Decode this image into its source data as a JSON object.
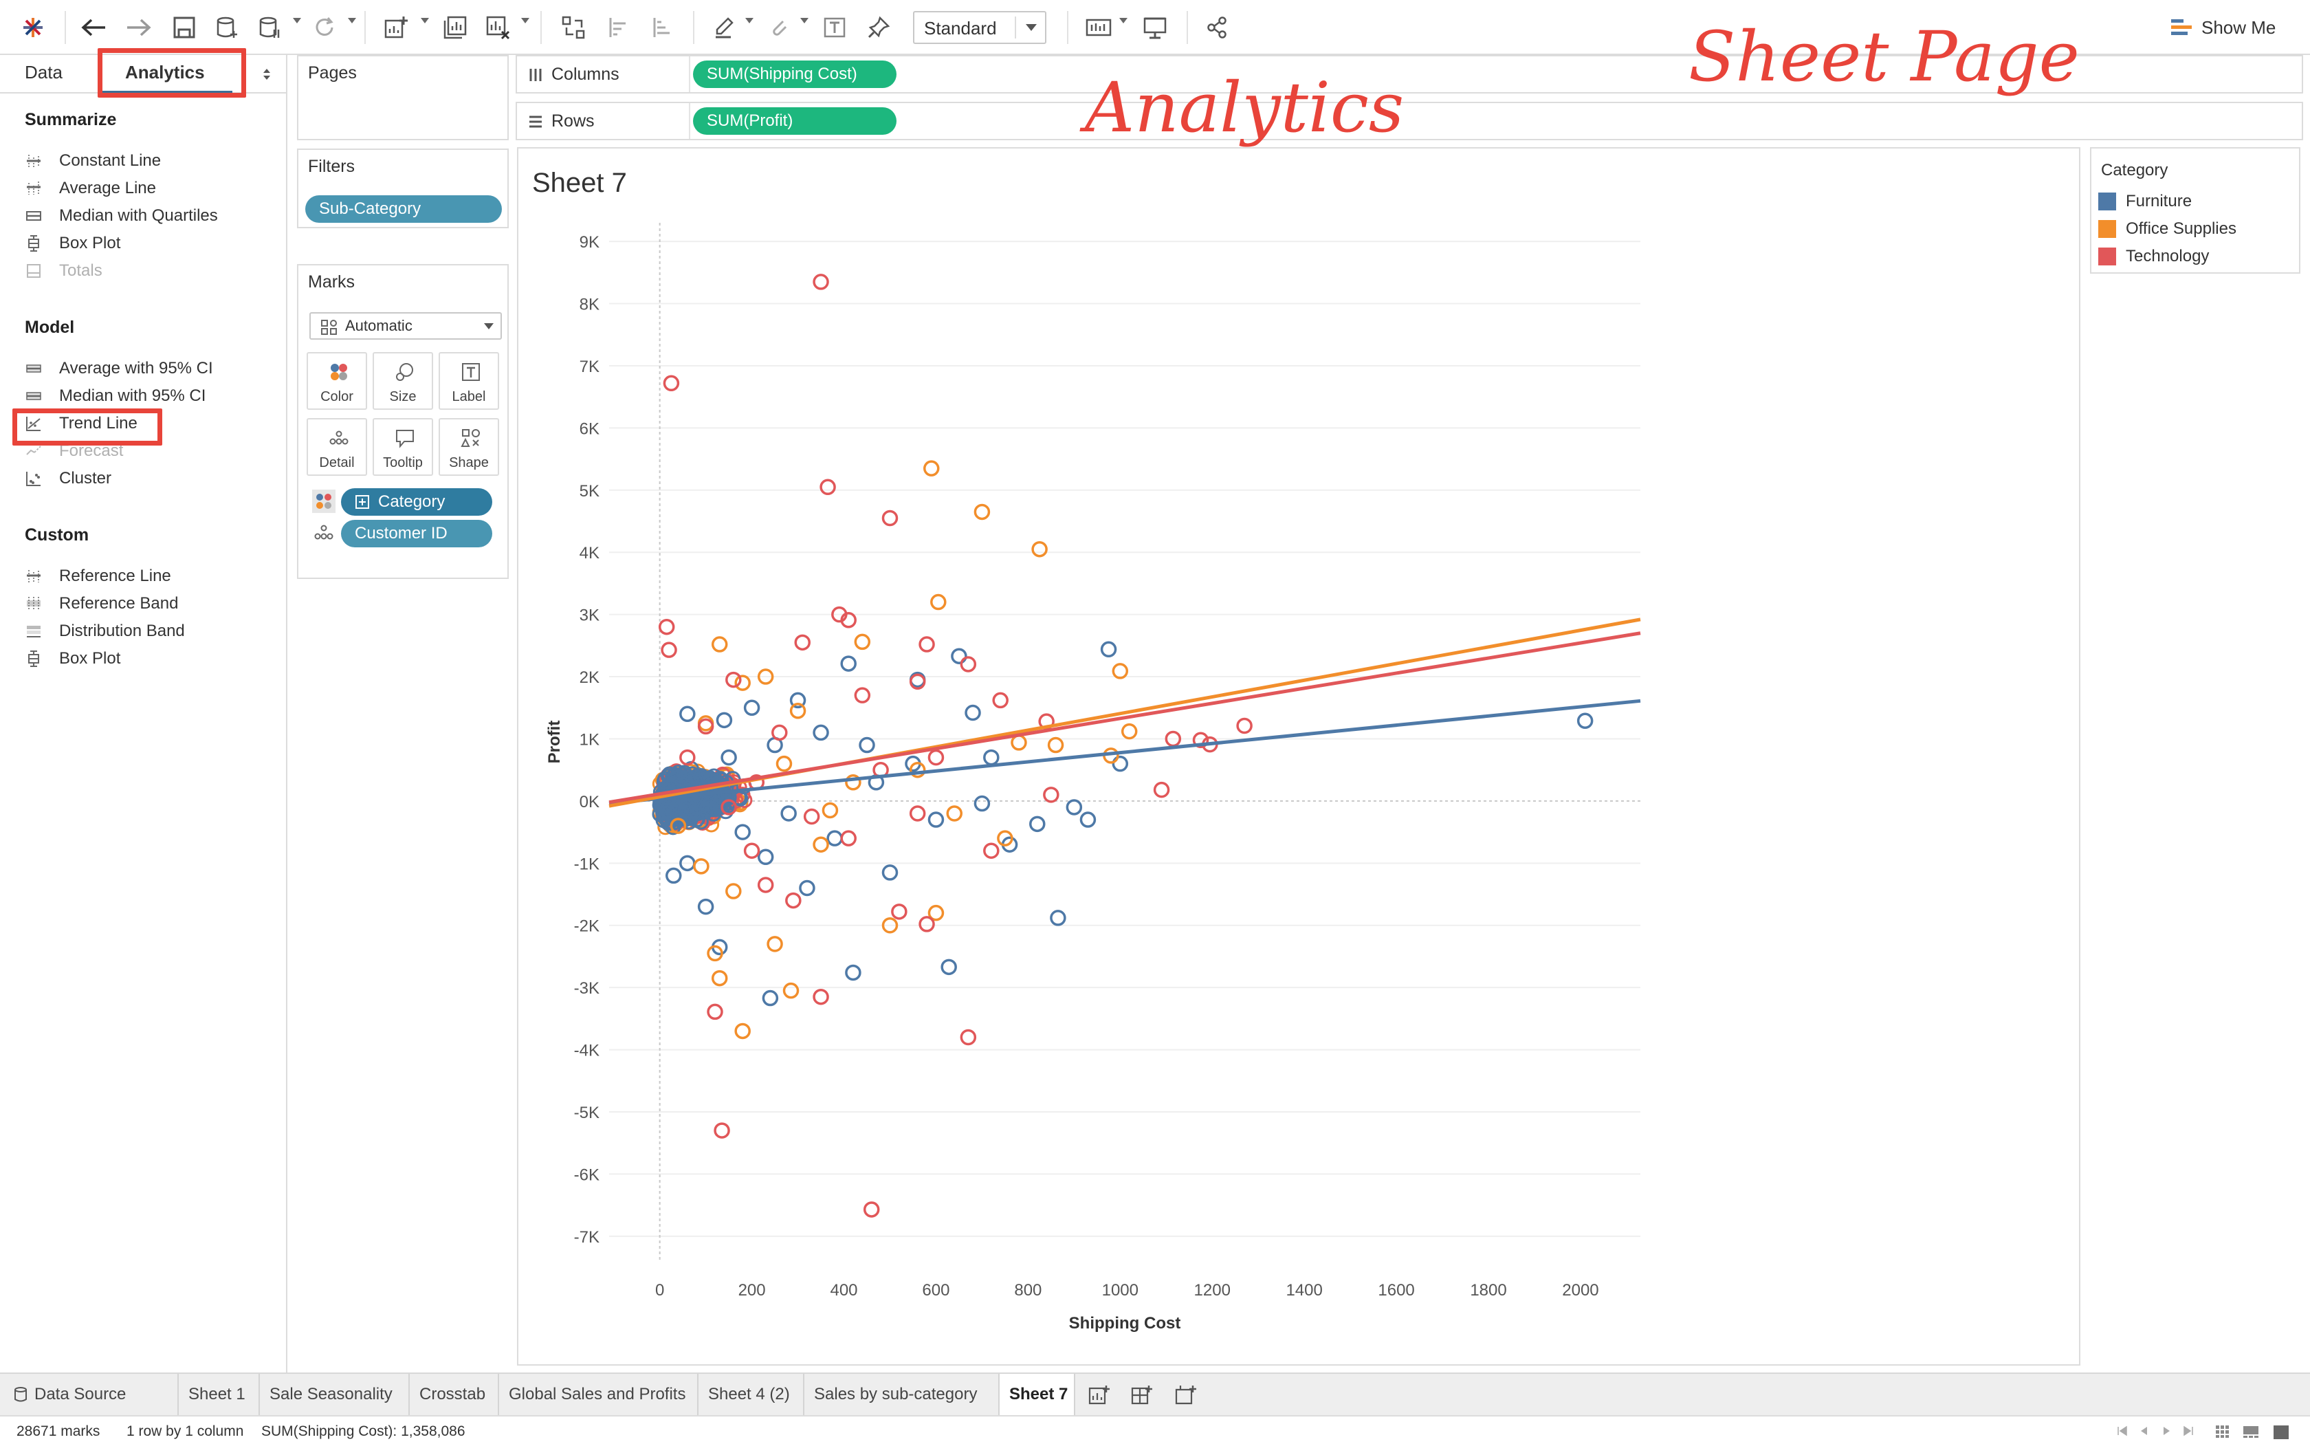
{
  "toolbar": {
    "fit_value": "Standard",
    "show_me_label": "Show Me",
    "icons": [
      "tableau-logo-icon",
      "undo-icon",
      "redo-icon",
      "save-icon",
      "new-datasource-icon",
      "pause-updates-icon",
      "refresh-icon",
      "new-worksheet-icon",
      "duplicate-sheet-icon",
      "clear-sheet-icon",
      "swap-axes-icon",
      "sort-ascending-icon",
      "sort-descending-icon",
      "highlight-icon",
      "group-icon",
      "label-icon",
      "pin-icon",
      "show-cards-icon",
      "presentation-icon",
      "share-icon"
    ]
  },
  "left_panel": {
    "tabs": {
      "data": "Data",
      "analytics": "Analytics"
    },
    "summarize": {
      "title": "Summarize",
      "items": [
        {
          "label": "Constant Line",
          "icon": "constant-line-icon",
          "enabled": true
        },
        {
          "label": "Average Line",
          "icon": "average-line-icon",
          "enabled": true
        },
        {
          "label": "Median with Quartiles",
          "icon": "median-quartiles-icon",
          "enabled": true
        },
        {
          "label": "Box Plot",
          "icon": "box-plot-icon",
          "enabled": true
        },
        {
          "label": "Totals",
          "icon": "totals-icon",
          "enabled": false
        }
      ]
    },
    "model": {
      "title": "Model",
      "items": [
        {
          "label": "Average with 95% CI",
          "icon": "average-ci-icon",
          "enabled": true
        },
        {
          "label": "Median with 95% CI",
          "icon": "median-ci-icon",
          "enabled": true
        },
        {
          "label": "Trend Line",
          "icon": "trend-line-icon",
          "enabled": true
        },
        {
          "label": "Forecast",
          "icon": "forecast-icon",
          "enabled": false
        },
        {
          "label": "Cluster",
          "icon": "cluster-icon",
          "enabled": true
        }
      ]
    },
    "custom": {
      "title": "Custom",
      "items": [
        {
          "label": "Reference Line",
          "icon": "reference-line-icon",
          "enabled": true
        },
        {
          "label": "Reference Band",
          "icon": "reference-band-icon",
          "enabled": true
        },
        {
          "label": "Distribution Band",
          "icon": "distribution-band-icon",
          "enabled": true
        },
        {
          "label": "Box Plot",
          "icon": "box-plot-icon",
          "enabled": true
        }
      ]
    }
  },
  "cards": {
    "pages_title": "Pages",
    "filters_title": "Filters",
    "filter_pill": "Sub-Category",
    "marks_title": "Marks",
    "mark_type": "Automatic",
    "mark_buttons": [
      "Color",
      "Size",
      "Label",
      "Detail",
      "Tooltip",
      "Shape"
    ],
    "mark_pills": [
      {
        "label": "Category",
        "kind": "color"
      },
      {
        "label": "Customer ID",
        "kind": "detail"
      }
    ]
  },
  "shelves": {
    "columns_label": "Columns",
    "columns_pill": "SUM(Shipping Cost)",
    "rows_label": "Rows",
    "rows_pill": "SUM(Profit)"
  },
  "sheet": {
    "title": "Sheet 7"
  },
  "legend": {
    "title": "Category",
    "items": [
      {
        "label": "Furniture",
        "color": "#4e79a7"
      },
      {
        "label": "Office Supplies",
        "color": "#f28e2b"
      },
      {
        "label": "Technology",
        "color": "#e15759"
      }
    ]
  },
  "annotations": {
    "sheet_page": "Sheet Page",
    "analytics": "Analytics"
  },
  "sheet_tabs": {
    "data_source": "Data Source",
    "tabs": [
      "Sheet 1",
      "Sale Seasonality",
      "Crosstab",
      "Global Sales and Profits",
      "Sheet 4 (2)",
      "Sales by sub-category",
      "Sheet 7"
    ],
    "active": "Sheet 7"
  },
  "status": {
    "marks": "28671 marks",
    "dims": "1 row by 1 column",
    "sum": "SUM(Shipping Cost): 1,358,086"
  },
  "chart_data": {
    "type": "scatter",
    "title": "Sheet 7",
    "xlabel": "Shipping Cost",
    "ylabel": "Profit",
    "xlim": [
      -110,
      2130
    ],
    "ylim": [
      -7400,
      9300
    ],
    "x_ticks": [
      {
        "v": 0,
        "label": "0"
      },
      {
        "v": 200,
        "label": "200"
      },
      {
        "v": 400,
        "label": "400"
      },
      {
        "v": 600,
        "label": "600"
      },
      {
        "v": 800,
        "label": "800"
      },
      {
        "v": 1000,
        "label": "1000"
      },
      {
        "v": 1200,
        "label": "1200"
      },
      {
        "v": 1400,
        "label": "1400"
      },
      {
        "v": 1600,
        "label": "1600"
      },
      {
        "v": 1800,
        "label": "1800"
      },
      {
        "v": 2000,
        "label": "2000"
      }
    ],
    "y_ticks": [
      {
        "v": 9000,
        "label": "9K"
      },
      {
        "v": 8000,
        "label": "8K"
      },
      {
        "v": 7000,
        "label": "7K"
      },
      {
        "v": 6000,
        "label": "6K"
      },
      {
        "v": 5000,
        "label": "5K"
      },
      {
        "v": 4000,
        "label": "4K"
      },
      {
        "v": 3000,
        "label": "3K"
      },
      {
        "v": 2000,
        "label": "2K"
      },
      {
        "v": 1000,
        "label": "1K"
      },
      {
        "v": 0,
        "label": "0K"
      },
      {
        "v": -1000,
        "label": "-1K"
      },
      {
        "v": -2000,
        "label": "-2K"
      },
      {
        "v": -3000,
        "label": "-3K"
      },
      {
        "v": -4000,
        "label": "-4K"
      },
      {
        "v": -5000,
        "label": "-5K"
      },
      {
        "v": -6000,
        "label": "-6K"
      },
      {
        "v": -7000,
        "label": "-7K"
      }
    ],
    "grid": true,
    "legend_position": "right",
    "series": [
      {
        "name": "Furniture",
        "color": "#4e79a7",
        "trend": [
          [
            -110,
            -40
          ],
          [
            2130,
            1610
          ]
        ],
        "points": [
          [
            2010,
            1290
          ],
          [
            975,
            2440
          ],
          [
            865,
            -1880
          ],
          [
            628,
            -2670
          ],
          [
            420,
            -2760
          ],
          [
            240,
            -3170
          ],
          [
            130,
            -2350
          ],
          [
            930,
            -300
          ],
          [
            900,
            -100
          ],
          [
            820,
            -370
          ],
          [
            1000,
            600
          ],
          [
            720,
            700
          ],
          [
            650,
            2330
          ],
          [
            680,
            1420
          ],
          [
            560,
            1950
          ],
          [
            410,
            2210
          ],
          [
            300,
            1620
          ],
          [
            200,
            1500
          ],
          [
            140,
            1300
          ],
          [
            60,
            -1000
          ],
          [
            100,
            -1700
          ],
          [
            30,
            -1200
          ],
          [
            320,
            -1400
          ],
          [
            500,
            -1150
          ],
          [
            760,
            -700
          ],
          [
            700,
            -40
          ],
          [
            450,
            900
          ],
          [
            350,
            1100
          ],
          [
            250,
            900
          ],
          [
            150,
            700
          ],
          [
            80,
            -300
          ],
          [
            180,
            -500
          ],
          [
            280,
            -200
          ],
          [
            380,
            -600
          ],
          [
            600,
            -300
          ],
          [
            550,
            600
          ],
          [
            470,
            300
          ],
          [
            90,
            400
          ],
          [
            40,
            -150
          ],
          [
            230,
            -900
          ],
          [
            60,
            1400
          ]
        ]
      },
      {
        "name": "Office Supplies",
        "color": "#f28e2b",
        "trend": [
          [
            -110,
            -80
          ],
          [
            2130,
            2920
          ]
        ],
        "points": [
          [
            590,
            5350
          ],
          [
            700,
            4650
          ],
          [
            825,
            4050
          ],
          [
            605,
            3200
          ],
          [
            440,
            2560
          ],
          [
            130,
            2520
          ],
          [
            1020,
            1120
          ],
          [
            1000,
            2090
          ],
          [
            980,
            730
          ],
          [
            180,
            -3700
          ],
          [
            285,
            -3050
          ],
          [
            130,
            -2850
          ],
          [
            120,
            -2450
          ],
          [
            250,
            -2300
          ],
          [
            500,
            -2000
          ],
          [
            600,
            -1800
          ],
          [
            750,
            -600
          ],
          [
            640,
            -200
          ],
          [
            420,
            300
          ],
          [
            180,
            1900
          ],
          [
            230,
            2000
          ],
          [
            780,
            940
          ],
          [
            860,
            900
          ],
          [
            300,
            1450
          ],
          [
            100,
            1250
          ],
          [
            40,
            -400
          ],
          [
            160,
            -1450
          ],
          [
            90,
            -1050
          ],
          [
            350,
            -700
          ],
          [
            270,
            600
          ],
          [
            560,
            500
          ],
          [
            370,
            -150
          ]
        ]
      },
      {
        "name": "Technology",
        "color": "#e15759",
        "trend": [
          [
            -110,
            -20
          ],
          [
            2130,
            2700
          ]
        ],
        "points": [
          [
            350,
            8350
          ],
          [
            25,
            6720
          ],
          [
            365,
            5050
          ],
          [
            500,
            4550
          ],
          [
            850,
            100
          ],
          [
            1090,
            180
          ],
          [
            1115,
            1000
          ],
          [
            1195,
            910
          ],
          [
            1270,
            1210
          ],
          [
            1175,
            980
          ],
          [
            460,
            -6570
          ],
          [
            670,
            -3800
          ],
          [
            135,
            -5300
          ],
          [
            350,
            -3150
          ],
          [
            120,
            -3390
          ],
          [
            520,
            -1780
          ],
          [
            580,
            -1980
          ],
          [
            560,
            1920
          ],
          [
            580,
            2520
          ],
          [
            390,
            3000
          ],
          [
            410,
            2910
          ],
          [
            310,
            2550
          ],
          [
            160,
            1950
          ],
          [
            20,
            2430
          ],
          [
            15,
            2800
          ],
          [
            840,
            1280
          ],
          [
            740,
            1620
          ],
          [
            600,
            700
          ],
          [
            480,
            500
          ],
          [
            410,
            -600
          ],
          [
            290,
            -1600
          ],
          [
            230,
            -1350
          ],
          [
            100,
            1200
          ],
          [
            210,
            300
          ],
          [
            330,
            -250
          ],
          [
            440,
            1700
          ],
          [
            670,
            2200
          ],
          [
            720,
            -800
          ],
          [
            560,
            -200
          ],
          [
            200,
            -800
          ],
          [
            60,
            700
          ],
          [
            150,
            -100
          ],
          [
            260,
            1100
          ]
        ]
      }
    ]
  }
}
